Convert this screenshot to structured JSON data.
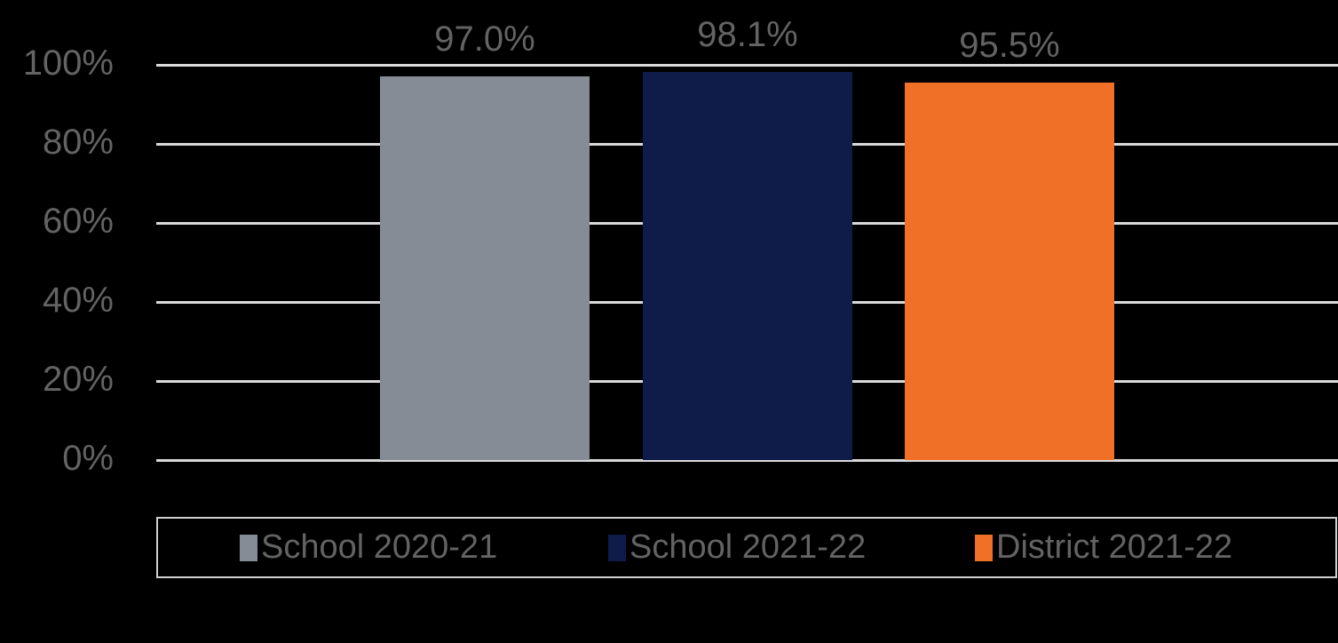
{
  "chart_data": {
    "type": "bar",
    "title": "",
    "xlabel": "",
    "ylabel": "",
    "ylim": [
      0,
      100
    ],
    "yticks": [
      "0%",
      "20%",
      "40%",
      "60%",
      "80%",
      "100%"
    ],
    "grid": true,
    "legend_position": "bottom",
    "categories": [
      "School 2020-21",
      "School 2021-22",
      "District 2021-22"
    ],
    "values": [
      97.0,
      98.1,
      95.5
    ],
    "value_labels": [
      "97.0%",
      "98.1%",
      "95.5%"
    ],
    "colors": [
      "#868c96",
      "#0f1c4a",
      "#f07028"
    ]
  },
  "legend": {
    "items": [
      {
        "label": "School 2020-21",
        "color": "#868c96"
      },
      {
        "label": "School 2021-22",
        "color": "#0f1c4a"
      },
      {
        "label": "District 2021-22",
        "color": "#f07028"
      }
    ]
  }
}
